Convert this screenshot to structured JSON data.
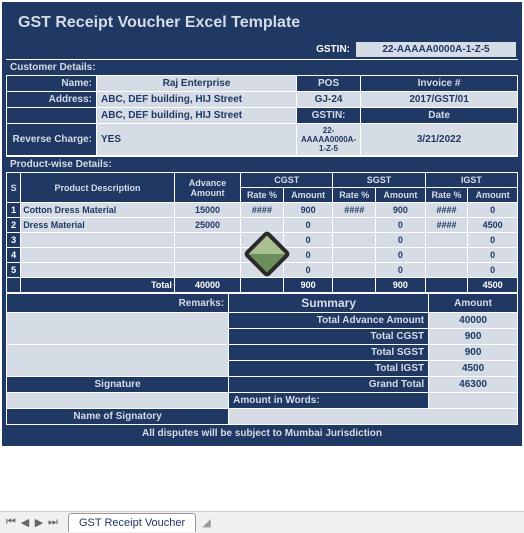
{
  "title": "GST Receipt Voucher Excel Template",
  "gstin": {
    "label": "GSTIN:",
    "value": "22-AAAAA0000A-1-Z-5"
  },
  "customer": {
    "section": "Customer Details:",
    "name_label": "Name:",
    "name": "Raj Enterprise",
    "addr_label": "Address:",
    "addr1": "ABC, DEF building, HIJ Street",
    "addr2": "ABC, DEF building, HIJ Street",
    "reverse_label": "Reverse Charge:",
    "reverse": "YES",
    "pos_label": "POS",
    "pos": "GJ-24",
    "gstin_label": "GSTIN:",
    "gstin": "22-AAAAA0000A-1-Z-5",
    "invoice_label": "Invoice #",
    "invoice": "2017/GST/01",
    "date_label": "Date",
    "date": "3/21/2022"
  },
  "products": {
    "section": "Product-wise Details:",
    "cols": {
      "sr": "S",
      "desc": "Product Description",
      "adv": "Advance Amount",
      "cgst": "CGST",
      "sgst": "SGST",
      "igst": "IGST",
      "rate": "Rate %",
      "amt": "Amount"
    },
    "rows": [
      {
        "sr": "1",
        "desc": "Cotton Dress Material",
        "adv": "15000",
        "cgst_r": "####",
        "cgst_a": "900",
        "sgst_r": "####",
        "sgst_a": "900",
        "igst_r": "####",
        "igst_a": "0"
      },
      {
        "sr": "2",
        "desc": "Dress Material",
        "adv": "25000",
        "cgst_r": "",
        "cgst_a": "0",
        "sgst_r": "",
        "sgst_a": "0",
        "igst_r": "####",
        "igst_a": "4500"
      },
      {
        "sr": "3",
        "desc": "",
        "adv": "",
        "cgst_r": "",
        "cgst_a": "0",
        "sgst_r": "",
        "sgst_a": "0",
        "igst_r": "",
        "igst_a": "0"
      },
      {
        "sr": "4",
        "desc": "",
        "adv": "",
        "cgst_r": "",
        "cgst_a": "0",
        "sgst_r": "",
        "sgst_a": "0",
        "igst_r": "",
        "igst_a": "0"
      },
      {
        "sr": "5",
        "desc": "",
        "adv": "",
        "cgst_r": "",
        "cgst_a": "0",
        "sgst_r": "",
        "sgst_a": "0",
        "igst_r": "",
        "igst_a": "0"
      }
    ],
    "total": {
      "label": "Total",
      "adv": "40000",
      "cgst": "900",
      "sgst": "900",
      "igst": "4500"
    }
  },
  "summary": {
    "remarks_label": "Remarks:",
    "summary_label": "Summary",
    "amount_label": "Amount",
    "items": [
      {
        "l": "Total Advance Amount",
        "v": "40000"
      },
      {
        "l": "Total CGST",
        "v": "900"
      },
      {
        "l": "Total SGST",
        "v": "900"
      },
      {
        "l": "Total IGST",
        "v": "4500"
      },
      {
        "l": "Grand Total",
        "v": "46300"
      }
    ],
    "signature": "Signature",
    "name_sig": "Name of Signatory",
    "amt_words": "Amount in Words:"
  },
  "footer": "All disputes will be subject to Mumbai Jurisdiction",
  "tab": "GST Receipt Voucher"
}
